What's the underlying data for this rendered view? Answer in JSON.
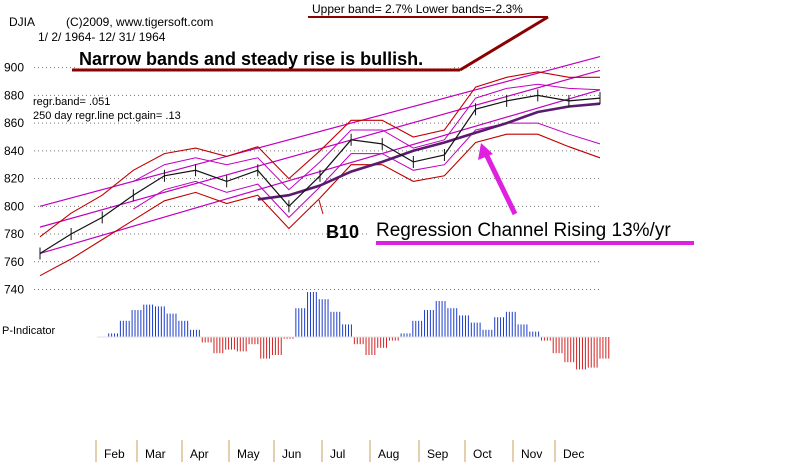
{
  "chart_data": {
    "type": "line",
    "symbol": "DJIA",
    "copyright": "(C)2009, www.tigersoft.com",
    "date_range": "1/ 2/ 1964- 12/ 31/ 1964",
    "band_note": "Upper band= 2.7%    Lower bands=-2.3%",
    "stats": [
      "regr.band= .051",
      "250 day regr.line pct.gain= .13"
    ],
    "annotations": {
      "narrow": "Narrow bands and steady rise is bullish.",
      "b10": "B10",
      "channel": "Regression Channel Rising 13%/yr"
    },
    "indicator_label": "P-Indicator",
    "y_ticks": [
      900,
      880,
      860,
      840,
      820,
      800,
      780,
      760,
      740
    ],
    "ylim": [
      731,
      912
    ],
    "months": [
      "Feb",
      "Mar",
      "Apr",
      "May",
      "Jun",
      "Jul",
      "Aug",
      "Sep",
      "Oct",
      "Nov",
      "Dec"
    ],
    "x_days": [
      0,
      14,
      28,
      42,
      56,
      70,
      84,
      98,
      112,
      126,
      140,
      154,
      168,
      182,
      196,
      210,
      224,
      238,
      252
    ],
    "close": [
      766,
      780,
      792,
      808,
      822,
      826,
      818,
      826,
      800,
      822,
      848,
      845,
      832,
      837,
      870,
      876,
      880,
      876,
      878
    ],
    "ma": [
      null,
      null,
      null,
      null,
      null,
      null,
      null,
      805,
      808,
      815,
      825,
      832,
      840,
      846,
      853,
      860,
      868,
      872,
      874
    ],
    "upper_band": [
      778,
      795,
      808,
      826,
      838,
      842,
      836,
      843,
      820,
      840,
      862,
      862,
      850,
      855,
      886,
      893,
      897,
      893,
      893
    ],
    "lower_band": [
      750,
      762,
      776,
      790,
      804,
      810,
      802,
      808,
      784,
      806,
      830,
      830,
      818,
      822,
      846,
      852,
      852,
      843,
      835
    ],
    "upper_band2": [
      null,
      null,
      null,
      818,
      830,
      835,
      830,
      835,
      812,
      832,
      855,
      855,
      842,
      848,
      878,
      885,
      888,
      885,
      884
    ],
    "lower_band2": [
      null,
      null,
      null,
      798,
      812,
      818,
      810,
      816,
      792,
      814,
      838,
      838,
      826,
      830,
      855,
      860,
      860,
      852,
      845
    ],
    "channel": {
      "mid": [
        785,
        898
      ],
      "upper": [
        800,
        908
      ],
      "lower": [
        766,
        884
      ]
    },
    "p_indicator": [
      0,
      4,
      18,
      30,
      36,
      34,
      26,
      18,
      8,
      -6,
      -18,
      -14,
      -16,
      -8,
      -24,
      -20,
      -2,
      32,
      50,
      42,
      28,
      14,
      -8,
      -20,
      -12,
      -4,
      4,
      18,
      30,
      40,
      32,
      24,
      16,
      8,
      22,
      28,
      14,
      6,
      -4,
      -18,
      -28,
      -36,
      -34,
      -24
    ],
    "colors": {
      "up": "#1c3cc8",
      "down": "#d02020",
      "price": "#111111",
      "band": "#c00000",
      "inner": "#c000c0",
      "ma": "#5a1a6e",
      "arrow": "#e020e0",
      "note": "#8b0000"
    }
  }
}
